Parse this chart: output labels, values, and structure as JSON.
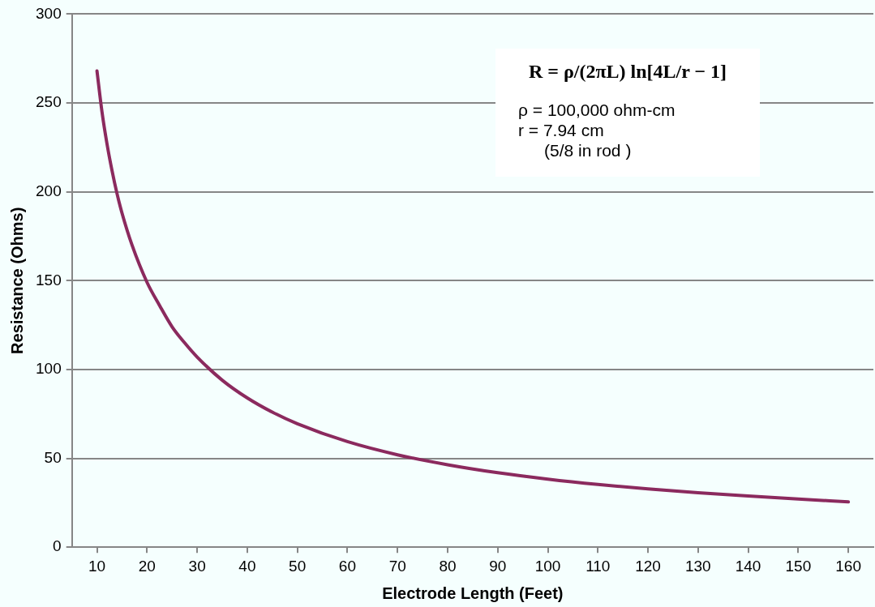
{
  "chart_data": {
    "type": "line",
    "xlabel": "Electrode Length (Feet)",
    "ylabel": "Resistance (Ohms)",
    "x": [
      10,
      11,
      12,
      13,
      14,
      15,
      17,
      20,
      22.5,
      25,
      27.5,
      30,
      35,
      40,
      45,
      50,
      60,
      70,
      80,
      90,
      100,
      110,
      120,
      130,
      140,
      150,
      160
    ],
    "series": [
      {
        "color": "#8b2a5e",
        "values": [
          268,
          245,
          227,
          212,
          199,
          188,
          170,
          149,
          136,
          124,
          115,
          107,
          94,
          84,
          76,
          69.5,
          59.4,
          52,
          46.4,
          41.9,
          38.3,
          35.3,
          32.8,
          30.6,
          28.8,
          27.1,
          25.5
        ]
      }
    ],
    "xlim": [
      5,
      165
    ],
    "xticks": [
      10,
      20,
      30,
      40,
      50,
      60,
      70,
      80,
      90,
      100,
      110,
      120,
      130,
      140,
      150,
      160
    ],
    "ylim": [
      0,
      300
    ],
    "yticks": [
      0,
      50,
      100,
      150,
      200,
      250,
      300
    ],
    "grid": "y",
    "legend": false,
    "marker": "none",
    "line_style": "solid",
    "annotations": [
      "R = ρ/(2πL) ln[4L/r − 1]",
      "ρ = 100,000 ohm-cm",
      "r = 7.94 cm",
      "(5/8 in rod )"
    ]
  }
}
